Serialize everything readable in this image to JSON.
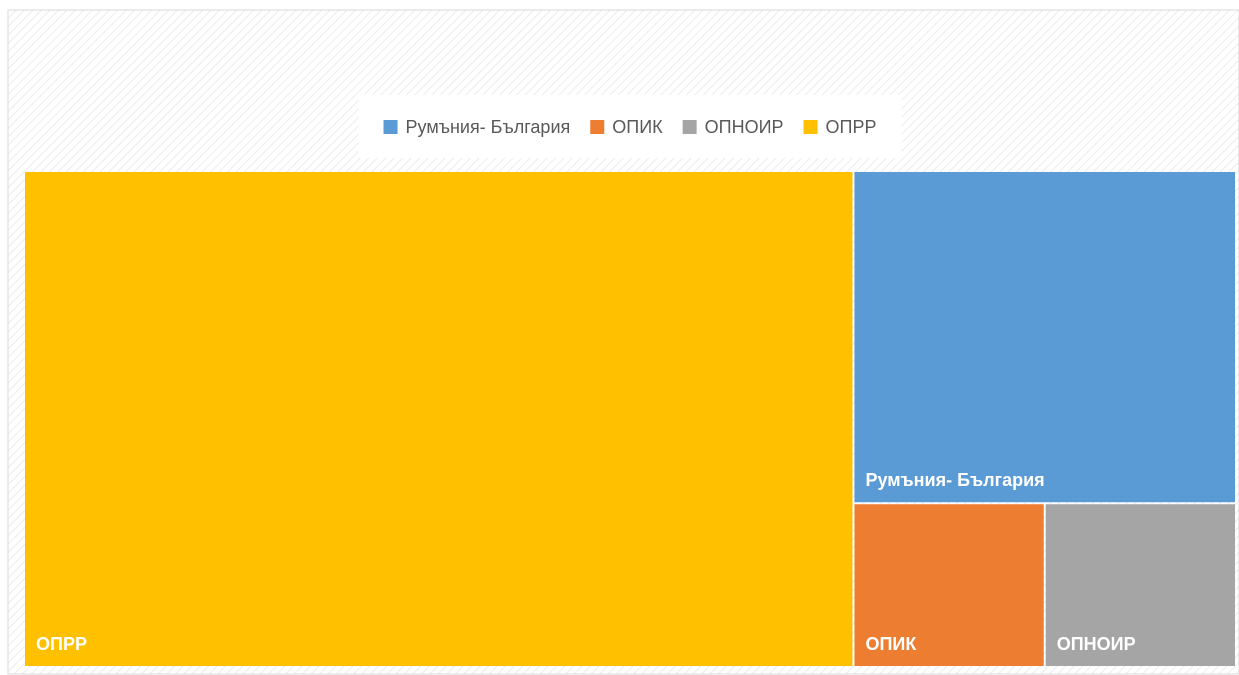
{
  "chart_data": {
    "type": "treemap",
    "categories": [
      "Румъния- България",
      "ОПИК",
      "ОПНОИР",
      "ОПРР"
    ],
    "values": [
      21.1,
      5.2,
      5.2,
      68.3
    ],
    "colors": [
      "#5b9bd5",
      "#ed7d31",
      "#a5a5a5",
      "#ffc000"
    ],
    "legend": "top"
  }
}
